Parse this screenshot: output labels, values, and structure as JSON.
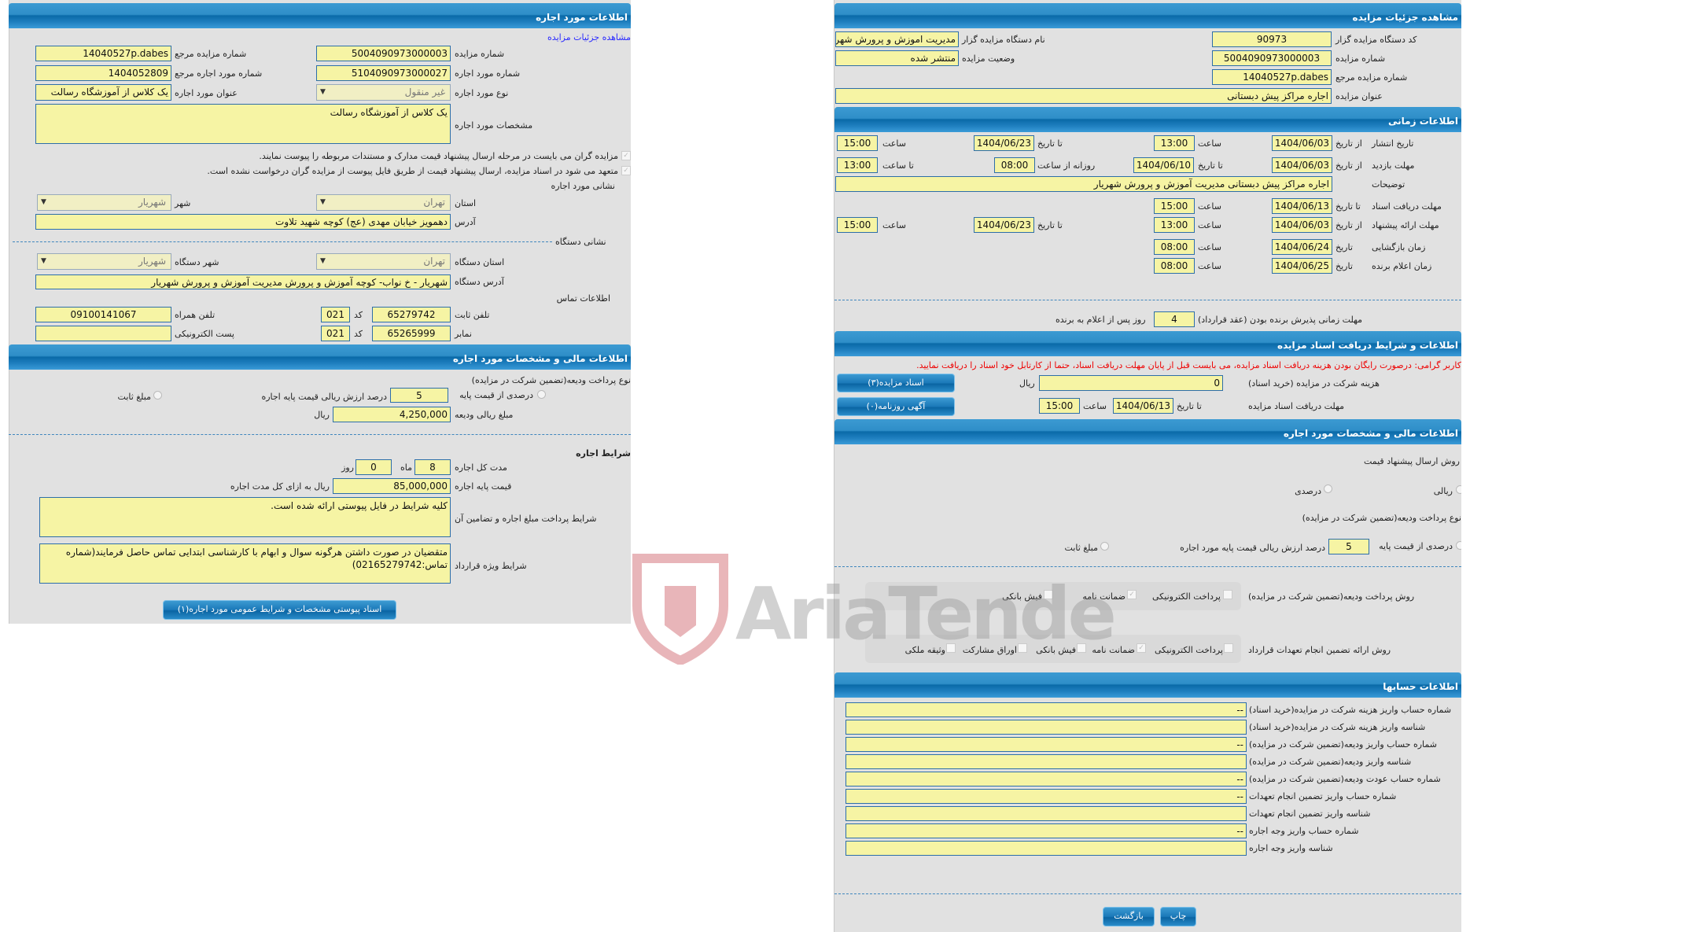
{
  "left": {
    "header": "اطلاعات مورد اجاره",
    "details_link": "مشاهده جزئیات مزایده",
    "auction_number": {
      "label": "شماره مزایده",
      "value": "5004090973000003"
    },
    "auction_ref": {
      "label": "شماره مزایده مرجع",
      "value": "14040527p.dabes"
    },
    "item_number": {
      "label": "شماره مورد اجاره",
      "value": "5104090973000027"
    },
    "item_ref": {
      "label": "شماره مورد اجاره مرجع",
      "value": "1404052809"
    },
    "item_type": {
      "label": "نوع مورد اجاره",
      "value": "غیر منقول"
    },
    "item_title": {
      "label": "عنوان مورد اجاره",
      "value": "یک کلاس از آموزشگاه رسالت"
    },
    "item_spec": {
      "label": "مشخصات مورد اجاره",
      "value": "یک کلاس از آموزشگاه رسالت"
    },
    "check1": "مزایده گران می بایست در مرحله ارسال پیشنهاد قیمت مدارک و مستندات مربوطه را پیوست نمایند.",
    "check2": "متعهد می شود در اسناد مزایده، ارسال پیشنهاد قیمت از طریق فایل پیوست از مزایده گران درخواست نشده است.",
    "item_address_title": "نشانی مورد اجاره",
    "province": {
      "label": "استان",
      "value": "تهران"
    },
    "city": {
      "label": "شهر",
      "value": "شهریار"
    },
    "address": {
      "label": "آدرس",
      "value": "دهمویز خیابان مهدی (عج) کوچه شهید تلاوت"
    },
    "org_address_title": "نشانی دستگاه",
    "org_province": {
      "label": "استان دستگاه",
      "value": "تهران"
    },
    "org_city": {
      "label": "شهر دستگاه",
      "value": "شهریار"
    },
    "org_address": {
      "label": "آدرس دستگاه",
      "value": "شهریار - خ نواب- کوچه آموزش و پرورش  مدیریت آموزش و پرورش شهریار"
    },
    "contact_title": "اطلاعات تماس",
    "phone": {
      "label": "تلفن ثابت",
      "value": "65279742",
      "code_label": "کد",
      "code": "021"
    },
    "mobile": {
      "label": "تلفن همراه",
      "value": "09100141067"
    },
    "fax": {
      "label": "نمابر",
      "value": "65265999",
      "code_label": "کد",
      "code": "021"
    },
    "email": {
      "label": "پست الکترونیکی",
      "value": ""
    },
    "finance_header": "اطلاعات مالی و مشخصات مورد اجاره",
    "deposit_type_label": "نوع پرداخت ودیعه(تضمین شرکت در مزایده)",
    "deposit_percent_label": "درصدی از قیمت پایه",
    "deposit_percent_value": "5",
    "deposit_percent_suffix": "درصد ارزش ریالی قیمت پایه اجاره",
    "deposit_fixed_label": "مبلغ ثابت",
    "deposit_amount": {
      "label": "مبلغ ریالی ودیعه",
      "value": "4,250,000",
      "unit": "ریال"
    },
    "lease_terms_title": "شرایط اجاره",
    "duration": {
      "label": "مدت کل اجاره",
      "months": "8",
      "months_label": "ماه",
      "days": "0",
      "days_label": "روز"
    },
    "base_price": {
      "label": "قیمت پایه اجاره",
      "value": "85,000,000",
      "unit": "ریال به ازای کل مدت اجاره"
    },
    "payment_terms": {
      "label": "شرایط پرداخت مبلغ اجاره و تضامین آن",
      "value": "کلیه شرایط در فایل پیوستی ارائه شده است."
    },
    "special_terms": {
      "label": "شرایط ویژه قرارداد",
      "value": "متقضیان در صورت داشتن هرگونه سوال و ابهام  با کارشناسی ابتدایی تماس حاصل فرمایند(شماره تماس:02165279742)"
    },
    "attachments_button": "اسناد پیوستی مشخصات و شرایط عمومی مورد اجاره(۱)"
  },
  "right": {
    "header": "مشاهده جزئیات مزایده",
    "org_code": {
      "label": "کد دستگاه مزایده گزار",
      "value": "90973"
    },
    "org_name": {
      "label": "نام دستگاه مزایده گزار",
      "value": "مدیریت اموزش و پرورش شهریار"
    },
    "auction_number": {
      "label": "شماره مزایده",
      "value": "5004090973000003"
    },
    "status": {
      "label": "وضعیت مزایده",
      "value": "منتشر شده"
    },
    "auction_ref": {
      "label": "شماره مزایده مرجع",
      "value": "14040527p.dabes"
    },
    "title": {
      "label": "عنوان مزایده",
      "value": "اجاره مراکز پیش دبستانی"
    },
    "time_header": "اطلاعات زمانی",
    "from_date": "از تاریخ",
    "to_date": "تا تاریخ",
    "date": "تاریخ",
    "hour": "ساعت",
    "to_hour": "تا ساعت",
    "daily_from": "روزانه از ساعت",
    "publish": {
      "label": "تاریخ انتشار",
      "from": "1404/06/03",
      "from_time": "13:00",
      "to": "1404/06/23",
      "to_time": "15:00"
    },
    "visit": {
      "label": "مهلت بازدید",
      "from": "1404/06/03",
      "to": "1404/06/10",
      "daily_from": "08:00",
      "daily_to": "13:00"
    },
    "description": {
      "label": "توضیحات",
      "value": "اجاره مراکز پیش دبستانی  مدیریت آموزش و پرورش شهریار"
    },
    "doc_deadline": {
      "label": "مهلت دریافت اسناد",
      "to": "1404/06/13",
      "time": "15:00"
    },
    "bid": {
      "label": "مهلت ارائه پیشنهاد",
      "from": "1404/06/03",
      "from_time": "13:00",
      "to": "1404/06/23",
      "to_time": "15:00"
    },
    "opening": {
      "label": "زمان بازگشایی",
      "date": "1404/06/24",
      "time": "08:00"
    },
    "winner": {
      "label": "زمان اعلام برنده",
      "date": "1404/06/25",
      "time": "08:00"
    },
    "acceptance": {
      "label": "مهلت زمانی پذیرش برنده بودن (عقد قرارداد)",
      "value": "4",
      "suffix": "روز پس از اعلام به برنده"
    },
    "docs_header": "اطلاعات و شرایط دریافت اسناد مزایده",
    "notice": "کاربر گرامی: درصورت رایگان بودن هزینه دریافت اسناد مزایده، می بایست قبل از پایان مهلت دریافت اسناد، حتما از کارتابل خود اسناد را دریافت نمایید.",
    "fee": {
      "label": "هزینه شرکت در مزایده (خرید اسناد)",
      "value": "0",
      "unit": "ریال"
    },
    "docs_deadline": {
      "label": "مهلت دریافت اسناد مزایده",
      "to": "1404/06/13",
      "time": "15:00"
    },
    "docs_button": "اسناد مزایده(۳)",
    "newspaper_button": "آگهی روزنامه(۰)",
    "finance_header": "اطلاعات مالی و مشخصات مورد اجاره",
    "price_method_label": "روش ارسال پیشنهاد قیمت",
    "price_method_rial": "ریالی",
    "price_method_percent": "درصدی",
    "deposit_type_label": "نوع پرداخت ودیعه(تضمین شرکت در مزایده)",
    "deposit_percent_label": "درصدی از قیمت پایه",
    "deposit_percent_value": "5",
    "deposit_percent_suffix": "درصد ارزش ریالی قیمت پایه مورد اجاره",
    "deposit_fixed_label": "مبلغ ثابت",
    "deposit_method": {
      "label": "روش پرداخت ودیعه(تضمین شرکت در مزایده)",
      "options": [
        {
          "label": "پرداخت الکترونیکی",
          "checked": false
        },
        {
          "label": "ضمانت نامه",
          "checked": true
        },
        {
          "label": "فیش بانکی",
          "checked": false
        }
      ]
    },
    "guarantee_method": {
      "label": "روش ارائه تضمین انجام تعهدات قرارداد",
      "options": [
        {
          "label": "پرداخت الکترونیکی",
          "checked": false
        },
        {
          "label": "ضمانت نامه",
          "checked": true
        },
        {
          "label": "فیش بانکی",
          "checked": false
        },
        {
          "label": "اوراق مشارکت",
          "checked": false
        },
        {
          "label": "وثیقه ملکی",
          "checked": false
        }
      ]
    },
    "accounts_header": "اطلاعات حسابها",
    "accounts": [
      {
        "label": "شماره حساب واریز هزینه شرکت در مزایده(خرید اسناد)",
        "value": "--"
      },
      {
        "label": "شناسه واریز هزینه شرکت در مزایده(خرید اسناد)",
        "value": ""
      },
      {
        "label": "شماره حساب واریز ودیعه(تضمین شرکت در مزایده)",
        "value": "--"
      },
      {
        "label": "شناسه واریز ودیعه(تضمین شرکت در مزایده)",
        "value": ""
      },
      {
        "label": "شماره حساب عودت ودیعه(تضمین شرکت در مزایده)",
        "value": "--"
      },
      {
        "label": "شماره حساب واریز تضمین انجام تعهدات",
        "value": "--"
      },
      {
        "label": "شناسه واریز تضمین انجام تعهدات",
        "value": ""
      },
      {
        "label": "شماره حساب واریز وجه اجاره",
        "value": "--"
      },
      {
        "label": "شناسه واریز وجه اجاره",
        "value": ""
      }
    ],
    "back_button": "بازگشت",
    "print_button": "چاپ"
  },
  "watermark": "AriaTender.neT",
  "colors": {
    "header": "#0a6aa8",
    "input": "#f6f4a4",
    "panel": "#e1e1e1",
    "notice": "#e00000"
  }
}
